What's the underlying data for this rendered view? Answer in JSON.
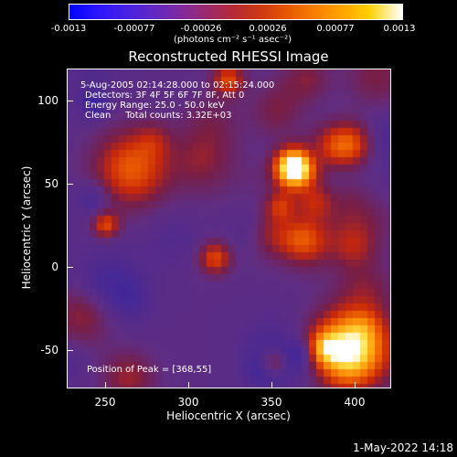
{
  "colorbar": {
    "ticks": [
      "-0.0013",
      "-0.00077",
      "-0.00026",
      "0.00026",
      "0.00077",
      "0.0013"
    ],
    "unit": "(photons cm⁻² s⁻¹ asec⁻²)"
  },
  "plot": {
    "title": "Reconstructed RHESSI Image",
    "info": {
      "time": "5-Aug-2005 02:14:28.000 to 02:15:24.000",
      "detectors": "Detectors: 3F 4F 5F 6F 7F 8F, Att 0",
      "energy": "Energy Range: 25.0 - 50.0 keV",
      "clean": "Clean     Total counts: 3.32E+03"
    },
    "peak": "Position of Peak = [368,55]",
    "xlabel": "Heliocentric X (arcsec)",
    "ylabel": "Heliocentric Y (arcsec)",
    "xticks": [
      "250",
      "300",
      "350",
      "400"
    ],
    "yticks": [
      "100",
      "50",
      "0",
      "-50"
    ]
  },
  "footer": {
    "timestamp": "1-May-2022 14:18"
  },
  "chart_data": {
    "type": "heatmap",
    "title": "Reconstructed RHESSI Image",
    "xlabel": "Heliocentric X (arcsec)",
    "ylabel": "Heliocentric Y (arcsec)",
    "xlim": [
      228,
      422
    ],
    "ylim": [
      -72,
      118
    ],
    "colorbar_range": [
      -0.0013,
      0.0013
    ],
    "colormap": "blue-purple-red-orange-yellow-white",
    "peak_position": [
      368,
      55
    ]
  }
}
